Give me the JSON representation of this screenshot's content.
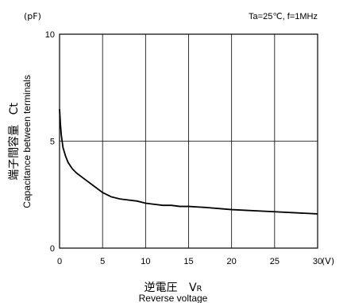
{
  "chart_data": {
    "type": "line",
    "annotation": "Ta=25℃, f=1MHz",
    "y_unit": "(pF)",
    "x_unit": "(V)",
    "xlabel_jp": "逆電圧",
    "xlabel_symbol": "V",
    "xlabel_symbol_sub": "R",
    "xlabel_en": "Reverse voltage",
    "ylabel_jp": "端子間容量",
    "ylabel_symbol": "Ct",
    "ylabel_en": "Capacitance between terminals",
    "xlim": [
      0,
      30
    ],
    "ylim": [
      0,
      10
    ],
    "x_ticks": [
      "0",
      "5",
      "10",
      "15",
      "20",
      "25",
      "30"
    ],
    "y_ticks": [
      "0",
      "5",
      "10"
    ],
    "grid": true,
    "series": [
      {
        "x": [
          0,
          0.1,
          0.2,
          0.4,
          0.7,
          1,
          1.5,
          2,
          3,
          4,
          5,
          6,
          7,
          8,
          9,
          10,
          11,
          12,
          13,
          14,
          15,
          17,
          20,
          25,
          30
        ],
        "y": [
          6.5,
          5.8,
          5.3,
          4.7,
          4.3,
          4.0,
          3.7,
          3.5,
          3.2,
          2.9,
          2.6,
          2.4,
          2.3,
          2.25,
          2.2,
          2.1,
          2.05,
          2.0,
          2.0,
          1.95,
          1.95,
          1.9,
          1.8,
          1.7,
          1.6
        ]
      }
    ]
  }
}
